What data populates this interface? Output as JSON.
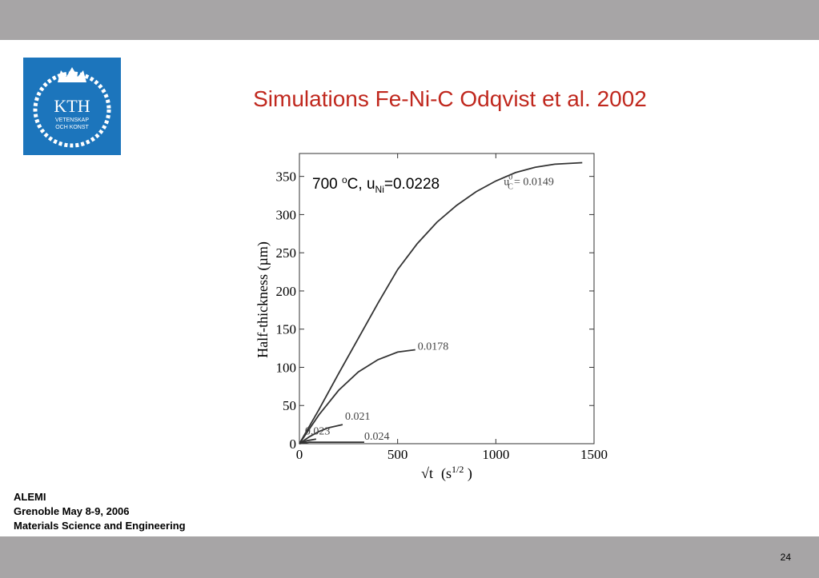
{
  "slide": {
    "title": "Simulations Fe-Ni-C Odqvist et al.  2002",
    "logo": {
      "name": "KTH",
      "line1": "VETENSKAP",
      "line2": "OCH KONST"
    },
    "footer": [
      "ALEMI",
      "Grenoble May 8-9, 2006",
      "Materials Science and Engineering"
    ],
    "page": "24"
  },
  "chart_data": {
    "type": "line",
    "color": "#333333",
    "annotation": {
      "a": "700 ",
      "sup": "o",
      "b": "C, u",
      "sub": "Ni",
      "c": "=0.0228"
    },
    "x_label": {
      "root": "√t",
      "unit": "(s",
      "sup": "1/2",
      "end": " )"
    },
    "y_label": "Half-thickness (µm)",
    "label_prefix": {
      "base": "u",
      "sub": "C",
      "sup": "0",
      "eq": "= "
    },
    "xlim": [
      0,
      1500
    ],
    "xticks": [
      0,
      500,
      1000,
      1500
    ],
    "ylim": [
      0,
      380
    ],
    "yticks": [
      0,
      50,
      100,
      150,
      200,
      250,
      300,
      350
    ],
    "series": [
      {
        "name": "0.0149",
        "x": [
          0,
          100,
          200,
          300,
          400,
          500,
          600,
          700,
          800,
          900,
          1000,
          1100,
          1200,
          1300,
          1440
        ],
        "values": [
          0,
          45,
          92,
          138,
          184,
          228,
          262,
          290,
          312,
          330,
          344,
          355,
          362,
          366,
          368
        ]
      },
      {
        "name": "0.0178",
        "x": [
          0,
          100,
          200,
          300,
          400,
          500,
          590
        ],
        "values": [
          0,
          38,
          70,
          94,
          110,
          120,
          123
        ]
      },
      {
        "name": "0.021",
        "x": [
          0,
          50,
          100,
          150,
          220
        ],
        "values": [
          0,
          9,
          16,
          21,
          25
        ]
      },
      {
        "name": "0.023",
        "x": [
          0,
          40,
          85
        ],
        "values": [
          0,
          4,
          6
        ]
      },
      {
        "name": "0.024",
        "x": [
          0,
          50,
          330
        ],
        "values": [
          0,
          2,
          2
        ]
      }
    ]
  }
}
